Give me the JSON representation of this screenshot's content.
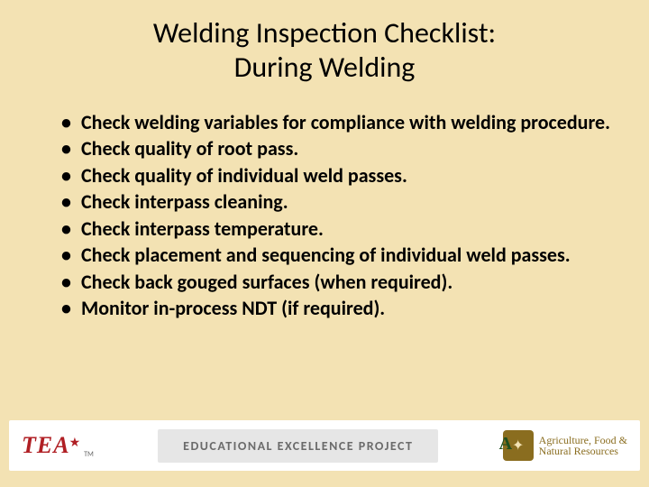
{
  "colors": {
    "background": "#f3e2b3",
    "text": "#000000",
    "footer_bg": "#ffffff",
    "tea_red": "#b01f24",
    "eep_bg": "#e6e6e6",
    "eep_text": "#6b6b6b",
    "ag_brown": "#8a6d1f",
    "ag_green": "#1f4f1f"
  },
  "typography": {
    "title_fontsize": 32,
    "title_weight": 400,
    "bullet_fontsize": 22,
    "bullet_weight": 700
  },
  "title_line1": "Welding Inspection Checklist:",
  "title_line2": "During Welding",
  "bullets": [
    "Check welding variables for compliance with welding procedure.",
    "Check quality of root pass.",
    "Check quality of individual weld passes.",
    "Check interpass cleaning.",
    "Check interpass temperature.",
    "Check placement and sequencing of individual weld passes.",
    "Check back gouged surfaces (when required).",
    "Monitor in-process NDT (if required)."
  ],
  "footer": {
    "tea": "TEA",
    "tea_tm": "TM",
    "eep": "EDUCATIONAL EXCELLENCE PROJECT",
    "ag_line1": "Agriculture, Food &",
    "ag_line2": "Natural Resources",
    "ag_letter": "A"
  }
}
